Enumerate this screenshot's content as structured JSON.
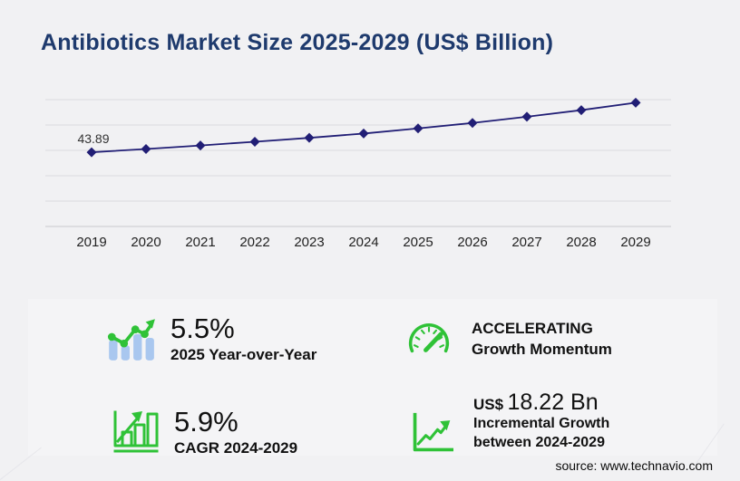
{
  "title": "Antibiotics Market Size 2025-2029 (US$ Billion)",
  "chart_data": {
    "type": "line",
    "title": "Antibiotics Market Size 2025-2029 (US$ Billion)",
    "x": [
      "2019",
      "2020",
      "2021",
      "2022",
      "2023",
      "2024",
      "2025",
      "2026",
      "2027",
      "2028",
      "2029"
    ],
    "values": [
      43.89,
      45.8,
      47.9,
      50.1,
      52.4,
      54.95,
      57.97,
      61.2,
      64.9,
      68.8,
      73.17
    ],
    "labeled_points": [
      {
        "x": "2019",
        "label": "43.89"
      }
    ],
    "xlabel": "",
    "ylabel": "",
    "ylim": [
      0,
      75
    ],
    "gridline_step": 15,
    "grid": "horizontal",
    "legend": "none",
    "line_color": "#211e75",
    "marker": "diamond"
  },
  "stats": [
    {
      "icon": "bar-line-growth-icon",
      "value": "5.5%",
      "label": "2025 Year-over-Year"
    },
    {
      "icon": "bar-chart-arrow-icon",
      "value": "5.9%",
      "label": "CAGR 2024-2029"
    },
    {
      "icon": "speedometer-icon",
      "line1": "ACCELERATING",
      "line2": "Growth Momentum"
    },
    {
      "icon": "line-chart-arrow-icon",
      "prefix": "US$",
      "value": "18.22 Bn",
      "label_line1": "Incremental Growth",
      "label_line2": "between 2024-2029"
    }
  ],
  "source": "source: www.technavio.com",
  "colors": {
    "title_navy": "#1e3a6d",
    "series_navy": "#211e75",
    "accent_green": "#2fc237",
    "bar_light_blue": "#a9c7ef",
    "page_bg": "#f1f1f3",
    "panel_bg": "#f4f4f6",
    "gridline": "#dcdcdf"
  }
}
